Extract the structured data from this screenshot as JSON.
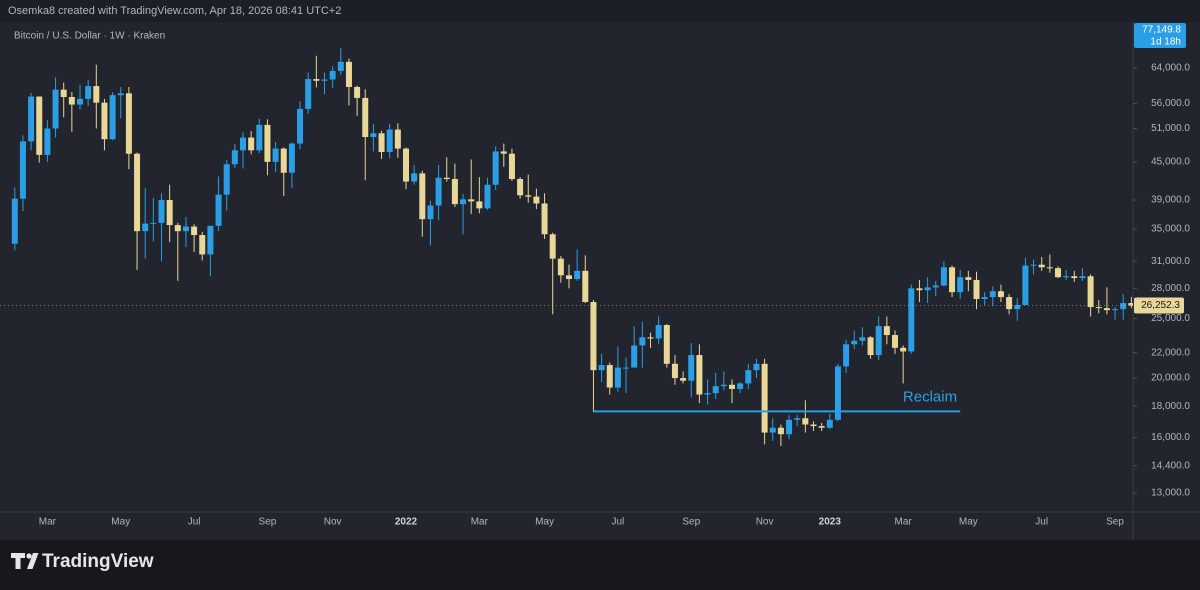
{
  "header": "Osemka8 created with TradingView.com, Apr 18, 2026 08:41 UTC+2",
  "footer": "TradingView",
  "chart_data": {
    "type": "candlestick",
    "title": "Bitcoin / U.S. Dollar · 1W · Kraken",
    "log_scale": true,
    "grid": false,
    "up_color": "#2a9fe6",
    "down_color": "#e8d796",
    "ylim": [
      12100,
      77200
    ],
    "yticks": [
      {
        "value": 13000,
        "label": "13,000.0"
      },
      {
        "value": 14400,
        "label": "14,400.0"
      },
      {
        "value": 16000,
        "label": "16,000.0"
      },
      {
        "value": 18000,
        "label": "18,000.0"
      },
      {
        "value": 20000,
        "label": "20,000.0"
      },
      {
        "value": 22000,
        "label": "22,000.0"
      },
      {
        "value": 25000,
        "label": "25,000.0"
      },
      {
        "value": 28000,
        "label": "28,000.0"
      },
      {
        "value": 31000,
        "label": "31,000.0"
      },
      {
        "value": 35000,
        "label": "35,000.0"
      },
      {
        "value": 39000,
        "label": "39,000.0"
      },
      {
        "value": 45000,
        "label": "45,000.0"
      },
      {
        "value": 51000,
        "label": "51,000.0"
      },
      {
        "value": 56000,
        "label": "56,000.0"
      },
      {
        "value": 64000,
        "label": "64,000.0"
      }
    ],
    "categories": [
      null,
      null,
      null,
      null,
      "Mar",
      null,
      null,
      null,
      null,
      null,
      null,
      null,
      null,
      "May",
      null,
      null,
      null,
      null,
      null,
      null,
      null,
      null,
      "Jul",
      null,
      null,
      null,
      null,
      null,
      null,
      null,
      null,
      "Sep",
      null,
      null,
      null,
      null,
      null,
      null,
      null,
      "Nov",
      null,
      null,
      null,
      null,
      null,
      null,
      null,
      null,
      "2022",
      null,
      null,
      null,
      null,
      null,
      null,
      null,
      null,
      "Mar",
      null,
      null,
      null,
      null,
      null,
      null,
      null,
      "May",
      null,
      null,
      null,
      null,
      null,
      null,
      null,
      null,
      "Jul",
      null,
      null,
      null,
      null,
      null,
      null,
      null,
      null,
      "Sep",
      null,
      null,
      null,
      null,
      null,
      null,
      null,
      null,
      "Nov",
      null,
      null,
      null,
      null,
      null,
      null,
      null,
      "2023",
      null,
      null,
      null,
      null,
      null,
      null,
      null,
      null,
      "Mar",
      null,
      null,
      null,
      null,
      null,
      null,
      null,
      "May",
      null,
      null,
      null,
      null,
      null,
      null,
      null,
      null,
      "Jul",
      null,
      null,
      null,
      null,
      null,
      null,
      null,
      null,
      "Sep",
      null,
      null
    ],
    "open": [
      33100,
      39200,
      48600,
      57500,
      46200,
      51000,
      59000,
      57400,
      55800,
      57000,
      59800,
      56200,
      49000,
      57800,
      58200,
      46400,
      34700,
      35700,
      35800,
      39000,
      35500,
      34700,
      35300,
      34200,
      31800,
      35400,
      39800,
      44600,
      47000,
      49300,
      47000,
      51700,
      45000,
      47300,
      43200,
      48200,
      54900,
      61400,
      61000,
      61300,
      63300,
      65500,
      59600,
      57200,
      49400,
      50100,
      46700,
      50800,
      47300,
      41800,
      43100,
      36300,
      38200,
      42400,
      42200,
      38400,
      39100,
      38800,
      37800,
      41300,
      46800,
      46400,
      42200,
      39700,
      39500,
      38500,
      34300,
      31300,
      29400,
      29000,
      29900,
      26600,
      20600,
      21000,
      19300,
      20800,
      20800,
      22600,
      23300,
      23200,
      24400,
      21100,
      20000,
      19800,
      21800,
      18800,
      18900,
      19400,
      19500,
      19200,
      19600,
      20600,
      21100,
      16300,
      16600,
      16200,
      17100,
      17200,
      16800,
      16700,
      16600,
      17100,
      20900,
      22700,
      23000,
      23300,
      21800,
      24300,
      23500,
      22400,
      22100,
      28000,
      27800,
      28100,
      28300,
      30300,
      27600,
      29200,
      28900,
      26900,
      27100,
      27700,
      27100,
      25900,
      26300,
      30500,
      30600,
      30300,
      30200,
      29200,
      29300,
      29100,
      29300,
      26100,
      26000,
      25800,
      25900,
      26500
    ],
    "high": [
      40900,
      49700,
      58300,
      57500,
      52600,
      61800,
      60600,
      58500,
      60100,
      61200,
      64800,
      57000,
      58400,
      59600,
      59600,
      46600,
      40800,
      39300,
      40000,
      41300,
      35800,
      36600,
      35600,
      34600,
      35400,
      42600,
      45300,
      48100,
      50300,
      50500,
      52900,
      52800,
      48500,
      47500,
      48400,
      56500,
      62900,
      67000,
      62900,
      64400,
      69000,
      66300,
      59900,
      59100,
      51900,
      50600,
      51900,
      52000,
      47500,
      44500,
      43500,
      38900,
      44500,
      45800,
      44700,
      39900,
      45400,
      42500,
      42400,
      47700,
      48200,
      47300,
      42500,
      42900,
      40700,
      40000,
      34500,
      31600,
      30600,
      32400,
      31700,
      26800,
      21900,
      21200,
      22500,
      21600,
      24300,
      24700,
      23700,
      25200,
      24500,
      21800,
      20500,
      22800,
      22700,
      19900,
      20400,
      20500,
      19900,
      19700,
      21100,
      21500,
      21500,
      17200,
      16800,
      17400,
      17400,
      18400,
      17000,
      16900,
      17500,
      21100,
      23100,
      23900,
      24200,
      23400,
      25200,
      25200,
      23900,
      22600,
      28400,
      28900,
      29200,
      28800,
      31000,
      30500,
      30000,
      29900,
      29800,
      27600,
      28200,
      28400,
      27400,
      27000,
      31400,
      31200,
      31500,
      31800,
      30400,
      30000,
      29900,
      30200,
      29500,
      26800,
      28100,
      26100,
      27400,
      27100
    ],
    "low": [
      32300,
      37400,
      47000,
      44900,
      45000,
      49300,
      53200,
      50400,
      54800,
      55500,
      51000,
      47000,
      48800,
      53000,
      43800,
      30000,
      31300,
      33400,
      31000,
      33300,
      28800,
      32700,
      32100,
      31100,
      29300,
      34700,
      37500,
      44000,
      43900,
      46300,
      46500,
      42800,
      43300,
      39600,
      40800,
      47200,
      53900,
      59500,
      58000,
      59400,
      62400,
      55600,
      53500,
      42000,
      46800,
      45500,
      45600,
      45700,
      40600,
      41300,
      34000,
      32900,
      36200,
      41800,
      38000,
      34300,
      37000,
      37100,
      37600,
      40500,
      44200,
      41900,
      39200,
      38600,
      37700,
      33700,
      25400,
      28600,
      28000,
      28800,
      26500,
      17600,
      19700,
      18800,
      19000,
      18900,
      20800,
      20800,
      22400,
      22700,
      20800,
      19500,
      19600,
      18600,
      18200,
      18100,
      18500,
      19100,
      18200,
      18900,
      19200,
      20000,
      15600,
      15800,
      15500,
      15900,
      16700,
      16300,
      16400,
      16400,
      16500,
      17000,
      20400,
      22300,
      22600,
      21500,
      21400,
      22700,
      21900,
      19600,
      21900,
      26600,
      26500,
      27200,
      28200,
      27100,
      26900,
      27700,
      25900,
      26300,
      26200,
      26600,
      25400,
      24800,
      26300,
      29500,
      29900,
      29700,
      29100,
      28900,
      28700,
      28800,
      25200,
      25500,
      25400,
      24900,
      24900,
      26000
    ],
    "close": [
      39200,
      48600,
      57500,
      46200,
      51000,
      59000,
      57400,
      55800,
      57000,
      59800,
      56200,
      49000,
      57800,
      58200,
      46400,
      34700,
      35700,
      35800,
      39000,
      35500,
      34700,
      35300,
      34200,
      31800,
      35400,
      39800,
      44600,
      47000,
      49300,
      47000,
      51700,
      45000,
      47300,
      43200,
      48200,
      54900,
      61400,
      61000,
      61300,
      63300,
      65500,
      59600,
      57200,
      49400,
      50100,
      46700,
      50800,
      47300,
      41800,
      43100,
      36300,
      38200,
      42400,
      42200,
      38400,
      39100,
      38800,
      37800,
      41300,
      46800,
      46400,
      42200,
      39700,
      39500,
      38500,
      34300,
      31300,
      29400,
      29000,
      29900,
      26600,
      20600,
      21000,
      19300,
      20800,
      20800,
      22600,
      23300,
      23200,
      24400,
      21100,
      20000,
      19800,
      21800,
      18800,
      18900,
      19400,
      19500,
      19200,
      19600,
      20600,
      21100,
      16300,
      16600,
      16200,
      17100,
      17200,
      16800,
      16700,
      16600,
      17100,
      20900,
      22700,
      23000,
      23300,
      21800,
      24300,
      23500,
      22400,
      22100,
      28000,
      27800,
      28100,
      28300,
      30300,
      27600,
      29200,
      28900,
      26900,
      27100,
      27700,
      27100,
      25900,
      26300,
      30500,
      30600,
      30300,
      30200,
      29200,
      29300,
      29100,
      29300,
      26100,
      26000,
      25800,
      25900,
      26500,
      26252.3
    ],
    "close_label": "26,252.3",
    "live_price": {
      "value": 77149.8,
      "label": "77,149.8"
    },
    "countdown": "1d 18h",
    "annotation": {
      "text": "Reclaim",
      "value": 17650,
      "color": "#2a9fe6"
    }
  }
}
